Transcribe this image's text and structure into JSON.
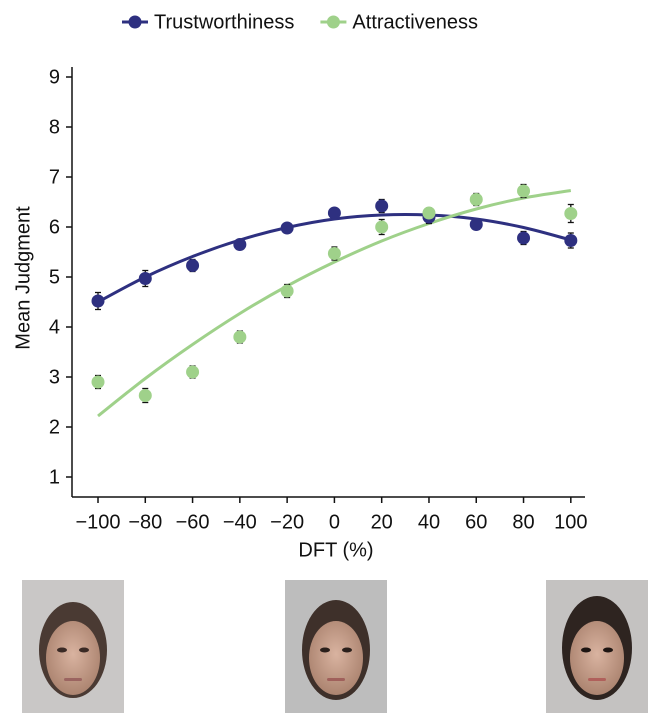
{
  "chart_data": {
    "type": "line",
    "x": [
      -100,
      -80,
      -60,
      -40,
      -20,
      0,
      20,
      40,
      60,
      80,
      100
    ],
    "xlabel": "DFT (%)",
    "ylabel": "Mean Judgment",
    "xlim": [
      -111,
      106
    ],
    "ylim": [
      0.6,
      9.2
    ],
    "xticks": [
      {
        "value": -100,
        "label": "−100"
      },
      {
        "value": -80,
        "label": "−80"
      },
      {
        "value": -60,
        "label": "−60"
      },
      {
        "value": -40,
        "label": "−40"
      },
      {
        "value": -20,
        "label": "−20"
      },
      0,
      20,
      40,
      60,
      80,
      100
    ],
    "yticks": [
      1,
      2,
      3,
      4,
      5,
      6,
      7,
      8,
      9
    ],
    "legend": "top",
    "series": [
      {
        "name": "Trustworthiness",
        "color": "#2e3080",
        "values": [
          4.52,
          4.97,
          5.23,
          5.65,
          5.98,
          6.28,
          6.42,
          6.2,
          6.05,
          5.78,
          5.73
        ],
        "errors": [
          0.17,
          0.16,
          0.12,
          0.1,
          0.08,
          0.1,
          0.13,
          0.13,
          0.1,
          0.13,
          0.15
        ],
        "fit": [
          4.5,
          5.0,
          5.41,
          5.74,
          5.99,
          6.16,
          6.24,
          6.24,
          6.16,
          5.99,
          5.74
        ]
      },
      {
        "name": "Attractiveness",
        "color": "#9fd18a",
        "values": [
          2.9,
          2.63,
          3.1,
          3.8,
          4.72,
          5.47,
          6.0,
          6.28,
          6.55,
          6.72,
          6.27
        ],
        "errors": [
          0.13,
          0.14,
          0.12,
          0.12,
          0.13,
          0.13,
          0.15,
          0.1,
          0.12,
          0.13,
          0.18
        ],
        "fit": [
          2.22,
          2.97,
          3.65,
          4.27,
          4.82,
          5.3,
          5.72,
          6.07,
          6.36,
          6.58,
          6.73
        ]
      }
    ]
  }
}
